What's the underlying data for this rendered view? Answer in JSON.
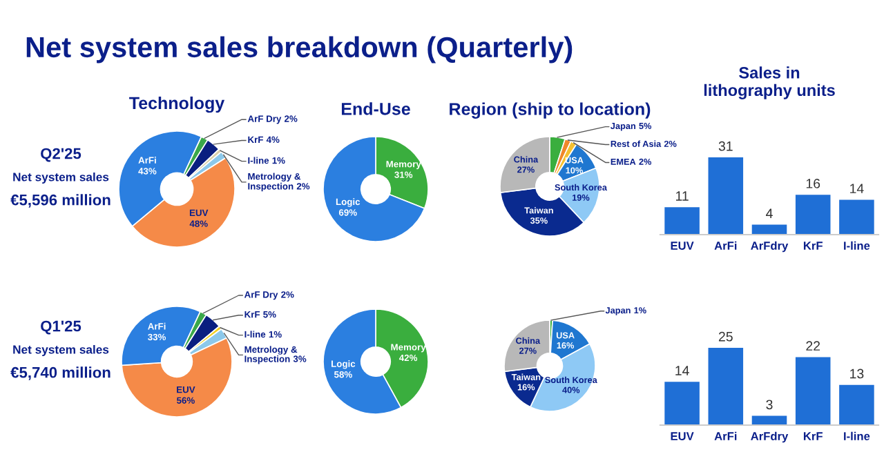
{
  "chart_data": [
    {
      "type": "other",
      "title": "Net system sales breakdown (Quarterly)",
      "annotations": [
        "Q2'25",
        "Net system sales",
        "€5,596 million"
      ]
    },
    {
      "type": "donut",
      "title": "Technology",
      "categories": [
        "ArF Dry",
        "KrF",
        "I-line",
        "Metrology & Inspection",
        "EUV",
        "ArFi"
      ],
      "values": [
        2,
        4,
        1,
        2,
        48,
        43
      ],
      "value_labels": [
        "2%",
        "4%",
        "1%",
        "2%",
        "48%",
        "43%"
      ],
      "colors": [
        "#3aa84a",
        "#0a1f80",
        "#d8cfa8",
        "#8cc8ea",
        "#f58a48",
        "#2b7fe0"
      ]
    },
    {
      "type": "donut",
      "title": "End-Use",
      "categories": [
        "Memory",
        "Logic"
      ],
      "values": [
        31,
        69
      ],
      "value_labels": [
        "31%",
        "69%"
      ],
      "colors": [
        "#3aae3e",
        "#2b7fe0"
      ]
    },
    {
      "type": "donut",
      "title": "Region (ship to location)",
      "categories": [
        "Japan",
        "Rest of Asia",
        "EMEA",
        "USA",
        "South Korea",
        "Taiwan",
        "China"
      ],
      "values": [
        5,
        2,
        2,
        10,
        19,
        35,
        27
      ],
      "value_labels": [
        "5%",
        "2%",
        "2%",
        "10%",
        "19%",
        "35%",
        "27%"
      ],
      "colors": [
        "#3aae3e",
        "#f0882a",
        "#f5c030",
        "#1f77d0",
        "#8ec9f5",
        "#0a2a8f",
        "#b8b8b8"
      ]
    },
    {
      "type": "bar",
      "title": "Sales in lithography units",
      "categories": [
        "EUV",
        "ArFi",
        "ArFdry",
        "KrF",
        "I-line"
      ],
      "values": [
        11,
        31,
        4,
        16,
        14
      ],
      "color": "#1f6fd6",
      "data_labels": true
    },
    {
      "type": "other",
      "annotations": [
        "Q1'25",
        "Net system sales",
        "€5,740 million"
      ]
    },
    {
      "type": "donut",
      "categories": [
        "ArF Dry",
        "KrF",
        "I-line",
        "Metrology & Inspection",
        "EUV",
        "ArFi"
      ],
      "values": [
        2,
        5,
        1,
        3,
        56,
        33
      ],
      "value_labels": [
        "2%",
        "5%",
        "1%",
        "3%",
        "56%",
        "33%"
      ],
      "colors": [
        "#3aa84a",
        "#0a1f80",
        "#f2d020",
        "#8cc8ea",
        "#f58a48",
        "#2b7fe0"
      ]
    },
    {
      "type": "donut",
      "categories": [
        "Memory",
        "Logic"
      ],
      "values": [
        42,
        58
      ],
      "value_labels": [
        "42%",
        "58%"
      ],
      "colors": [
        "#3aae3e",
        "#2b7fe0"
      ]
    },
    {
      "type": "donut",
      "categories": [
        "Japan",
        "USA",
        "South Korea",
        "Taiwan",
        "China"
      ],
      "values": [
        1,
        16,
        40,
        16,
        27
      ],
      "value_labels": [
        "1%",
        "16%",
        "40%",
        "16%",
        "27%"
      ],
      "colors": [
        "#3aae3e",
        "#1f77d0",
        "#8ec9f5",
        "#0a2a8f",
        "#b8b8b8"
      ]
    },
    {
      "type": "bar",
      "categories": [
        "EUV",
        "ArFi",
        "ArFdry",
        "KrF",
        "I-line"
      ],
      "values": [
        14,
        25,
        3,
        22,
        13
      ],
      "color": "#1f6fd6",
      "data_labels": true
    }
  ]
}
